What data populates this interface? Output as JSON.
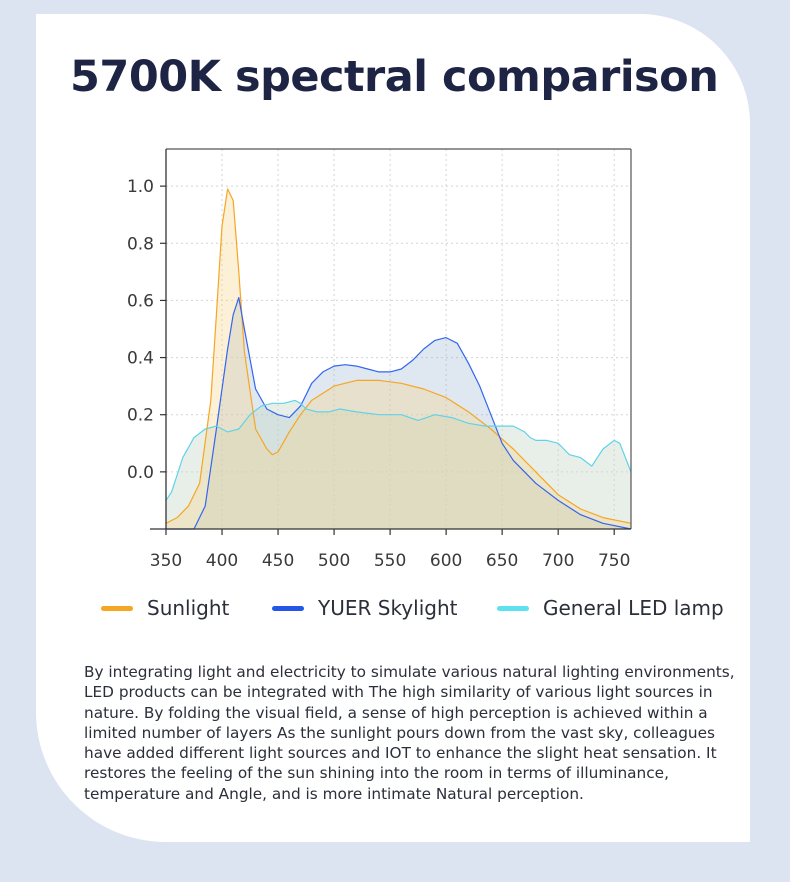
{
  "title": "5700K spectral comparison",
  "chart_data": {
    "type": "area",
    "xlabel": "",
    "ylabel": "",
    "xlim": [
      350,
      765
    ],
    "ylim": [
      -0.2,
      1.13
    ],
    "x_ticks": [
      350,
      400,
      450,
      500,
      550,
      600,
      650,
      700,
      750
    ],
    "y_ticks": [
      0.0,
      0.2,
      0.4,
      0.6,
      0.8,
      1.0
    ],
    "grid": true,
    "legend_position": "bottom",
    "series": [
      {
        "name": "Sunlight",
        "color": "#f5a623",
        "x": [
          350,
          360,
          370,
          380,
          390,
          395,
          400,
          405,
          410,
          415,
          420,
          430,
          440,
          445,
          450,
          460,
          470,
          480,
          500,
          520,
          540,
          560,
          580,
          600,
          620,
          640,
          660,
          680,
          700,
          720,
          740,
          765
        ],
        "y": [
          -0.18,
          -0.16,
          -0.12,
          -0.04,
          0.25,
          0.55,
          0.86,
          0.99,
          0.95,
          0.7,
          0.42,
          0.15,
          0.08,
          0.06,
          0.07,
          0.14,
          0.2,
          0.25,
          0.3,
          0.32,
          0.32,
          0.31,
          0.29,
          0.26,
          0.21,
          0.15,
          0.08,
          0.0,
          -0.08,
          -0.13,
          -0.16,
          -0.18
        ]
      },
      {
        "name": "YUER Skylight",
        "color": "#3366ee",
        "x": [
          350,
          365,
          375,
          385,
          395,
          405,
          410,
          415,
          420,
          430,
          440,
          450,
          460,
          470,
          480,
          490,
          500,
          510,
          520,
          530,
          540,
          550,
          560,
          570,
          580,
          590,
          600,
          610,
          620,
          630,
          640,
          650,
          660,
          680,
          700,
          720,
          740,
          765
        ],
        "y": [
          -0.2,
          -0.2,
          -0.2,
          -0.12,
          0.15,
          0.43,
          0.55,
          0.61,
          0.5,
          0.29,
          0.22,
          0.2,
          0.19,
          0.23,
          0.31,
          0.35,
          0.37,
          0.375,
          0.37,
          0.36,
          0.35,
          0.35,
          0.36,
          0.39,
          0.43,
          0.46,
          0.47,
          0.45,
          0.38,
          0.3,
          0.2,
          0.1,
          0.04,
          -0.04,
          -0.1,
          -0.15,
          -0.18,
          -0.2
        ]
      },
      {
        "name": "General LED lamp",
        "color": "#5fd3e8",
        "x": [
          350,
          355,
          365,
          375,
          385,
          395,
          405,
          415,
          425,
          435,
          445,
          455,
          465,
          470,
          475,
          485,
          495,
          505,
          520,
          540,
          560,
          575,
          590,
          605,
          620,
          635,
          650,
          660,
          670,
          675,
          680,
          690,
          700,
          705,
          710,
          720,
          730,
          740,
          750,
          755,
          765
        ],
        "y": [
          -0.1,
          -0.07,
          0.05,
          0.12,
          0.15,
          0.16,
          0.14,
          0.15,
          0.2,
          0.23,
          0.24,
          0.24,
          0.25,
          0.24,
          0.22,
          0.21,
          0.21,
          0.22,
          0.21,
          0.2,
          0.2,
          0.18,
          0.2,
          0.19,
          0.17,
          0.16,
          0.16,
          0.16,
          0.14,
          0.12,
          0.11,
          0.11,
          0.1,
          0.08,
          0.06,
          0.05,
          0.02,
          0.08,
          0.11,
          0.1,
          0.0
        ]
      }
    ]
  },
  "legend": [
    {
      "label": "Sunlight",
      "color": "#f5a623"
    },
    {
      "label": "YUER Skylight",
      "color": "#2457e8"
    },
    {
      "label": "General LED lamp",
      "color": "#5fe0f0"
    }
  ],
  "description": "By integrating light and electricity to simulate various natural lighting environments, LED products can be integrated with The high similarity of various light sources in nature. By folding the visual field, a sense of high perception is achieved within a limited number of layers As the sunlight pours down from the vast sky, colleagues have added different light sources and IOT to enhance the slight heat sensation. It restores the feeling of the sun shining into the room in terms of illuminance, temperature and Angle, and is more intimate Natural perception."
}
